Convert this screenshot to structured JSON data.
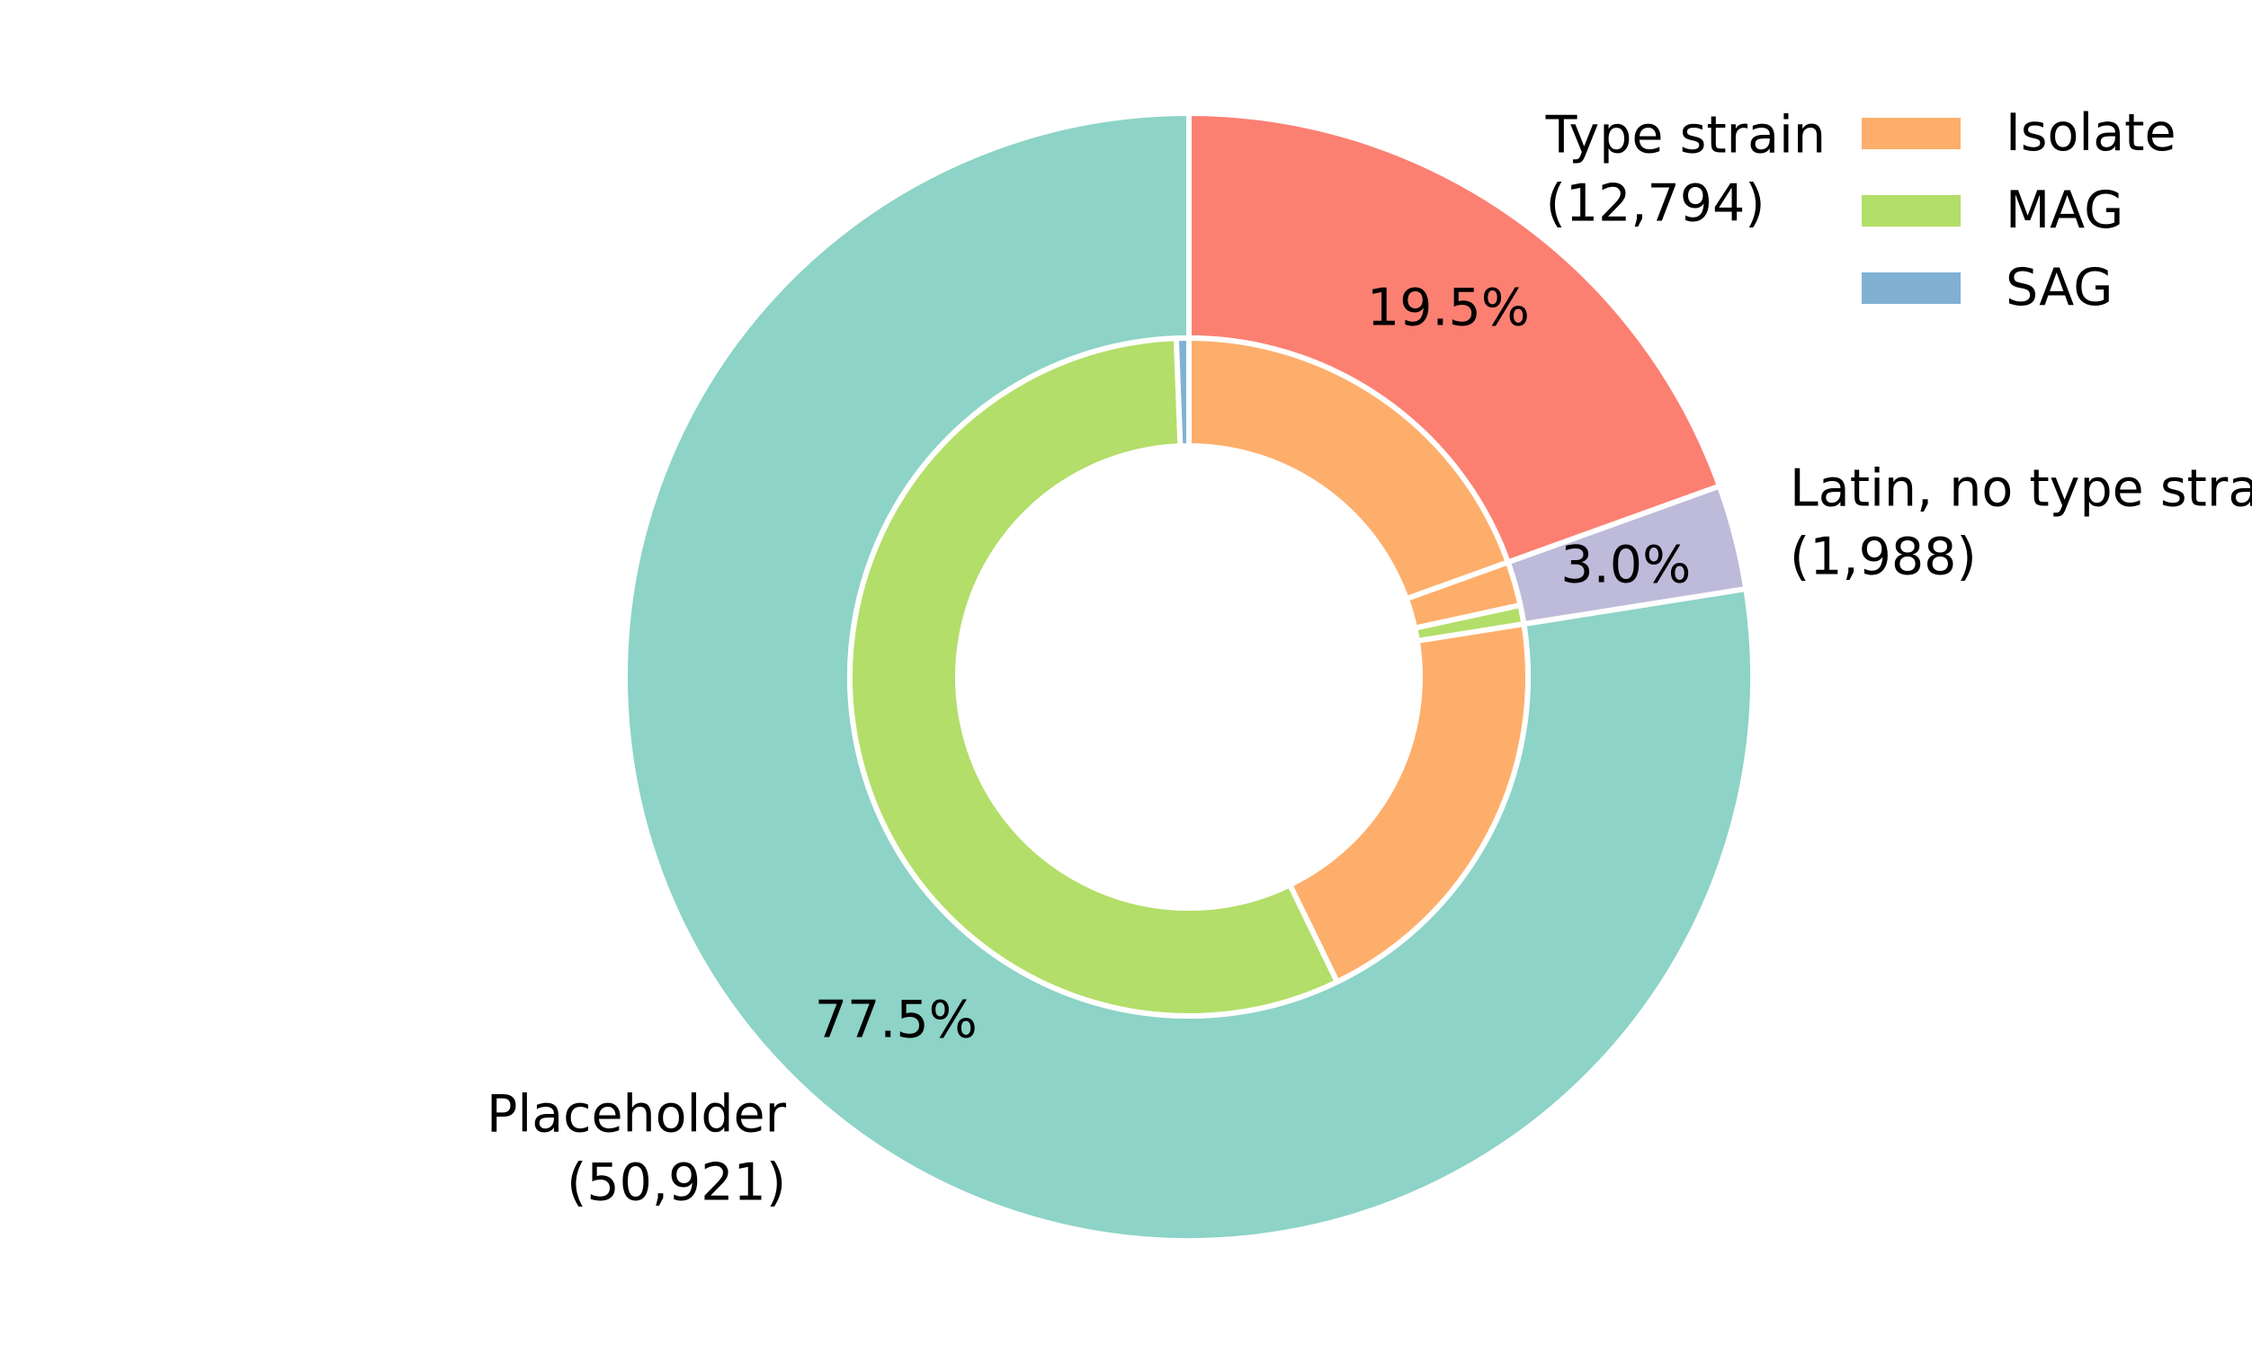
{
  "chart_data": {
    "type": "pie",
    "variant": "nested-donut",
    "outer_ring": {
      "slices": [
        {
          "label": "Placeholder",
          "count": 50921,
          "count_label": "(50,921)",
          "percent": 77.5,
          "percent_label": "77.5%",
          "color": "#8dd3c7"
        },
        {
          "label": "Latin, no type strain",
          "count": 1988,
          "count_label": "(1,988)",
          "percent": 3.0,
          "percent_label": "3.0%",
          "color": "#bebada"
        },
        {
          "label": "Type strain",
          "count": 12794,
          "count_label": "(12,794)",
          "percent": 19.5,
          "percent_label": "19.5%",
          "color": "#fb8072"
        }
      ]
    },
    "inner_ring": {
      "slices": [
        {
          "parent": "Placeholder",
          "category": "SAG",
          "value": 0.6
        },
        {
          "parent": "Placeholder",
          "category": "MAG",
          "value": 56.6
        },
        {
          "parent": "Placeholder",
          "category": "Isolate",
          "value": 20.3
        },
        {
          "parent": "Latin, no type strain",
          "category": "MAG",
          "value": 0.9
        },
        {
          "parent": "Latin, no type strain",
          "category": "Isolate",
          "value": 2.1
        },
        {
          "parent": "Type strain",
          "category": "Isolate",
          "value": 19.5
        }
      ]
    },
    "legend": {
      "placement": "top-right",
      "entries": [
        {
          "label": "Isolate",
          "color": "#fdae6b"
        },
        {
          "label": "MAG",
          "color": "#b3de69"
        },
        {
          "label": "SAG",
          "color": "#80b1d3"
        }
      ]
    }
  }
}
